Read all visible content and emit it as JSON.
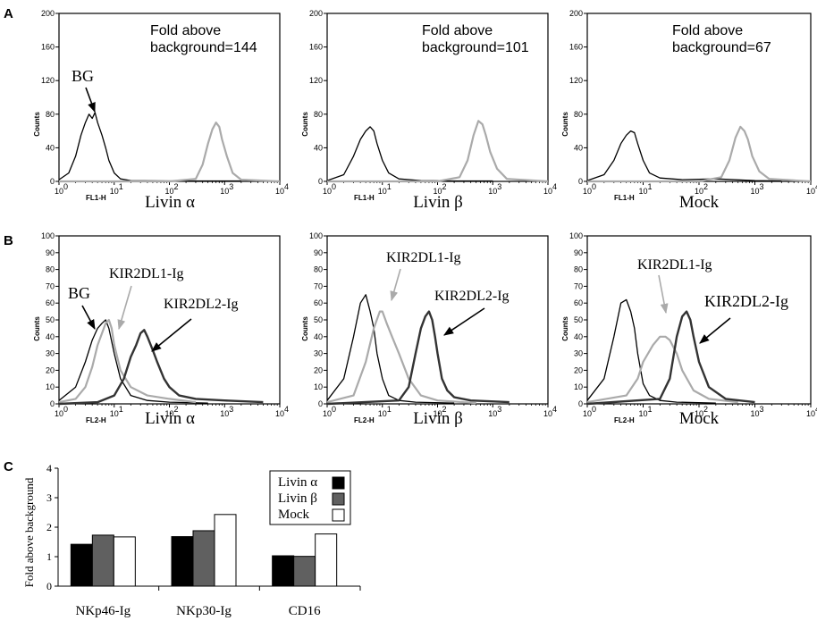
{
  "panels": [
    {
      "letter": "A"
    },
    {
      "letter": "B"
    },
    {
      "letter": "C"
    }
  ],
  "chart_data": [
    {
      "type": "line",
      "panel": "A",
      "title": "Livin α",
      "xlabel": "FL1-H",
      "ylabel": "Counts",
      "xscale": "log",
      "xlim": [
        1,
        10000
      ],
      "ylim": [
        0,
        200
      ],
      "xticks": [
        "10",
        "10",
        "10",
        "10",
        "10"
      ],
      "xticks_exp": [
        "0",
        "1",
        "2",
        "3",
        "4"
      ],
      "yticks": [
        "0",
        "40",
        "80",
        "120",
        "160",
        "200"
      ],
      "annotations": [
        "Fold above",
        "background=144",
        "BG"
      ],
      "series": [
        {
          "color": "#000000",
          "x": [
            1,
            1.5,
            2,
            2.5,
            3,
            3.5,
            4,
            4.5,
            5,
            6,
            7,
            8,
            10,
            13,
            20,
            100,
            500,
            2000
          ],
          "y": [
            2,
            10,
            30,
            55,
            70,
            80,
            75,
            82,
            70,
            55,
            40,
            25,
            10,
            3,
            1,
            0.5,
            0.5,
            0.5
          ]
        },
        {
          "color": "#aaaaaa",
          "x": [
            1,
            100,
            300,
            400,
            500,
            600,
            700,
            800,
            900,
            1100,
            1400,
            2000,
            10000
          ],
          "y": [
            0,
            0,
            3,
            20,
            45,
            62,
            70,
            65,
            50,
            30,
            10,
            2,
            0
          ]
        }
      ]
    },
    {
      "type": "line",
      "panel": "A",
      "title": "Livin β",
      "xlabel": "FL1-H",
      "ylabel": "Counts",
      "xscale": "log",
      "xlim": [
        1,
        10000
      ],
      "ylim": [
        0,
        200
      ],
      "xticks": [
        "10",
        "10",
        "10",
        "10",
        "10"
      ],
      "xticks_exp": [
        "0",
        "1",
        "2",
        "3",
        "4"
      ],
      "yticks": [
        "0",
        "40",
        "80",
        "120",
        "160",
        "200"
      ],
      "annotations": [
        "Fold above",
        "background=101"
      ],
      "series": [
        {
          "color": "#000000",
          "x": [
            1,
            2,
            3,
            4,
            5,
            6,
            7,
            8,
            10,
            13,
            20,
            50,
            200,
            1000
          ],
          "y": [
            1,
            8,
            30,
            50,
            60,
            65,
            60,
            45,
            25,
            10,
            3,
            1,
            0.5,
            0.5
          ]
        },
        {
          "color": "#aaaaaa",
          "x": [
            1,
            100,
            250,
            350,
            450,
            550,
            650,
            750,
            900,
            1200,
            1800,
            10000
          ],
          "y": [
            0,
            0,
            5,
            25,
            55,
            72,
            68,
            55,
            35,
            15,
            3,
            0
          ]
        }
      ]
    },
    {
      "type": "line",
      "panel": "A",
      "title": "Mock",
      "xlabel": "FL1-H",
      "ylabel": "Counts",
      "xscale": "log",
      "xlim": [
        1,
        10000
      ],
      "ylim": [
        0,
        200
      ],
      "xticks": [
        "10",
        "10",
        "10",
        "10",
        "10"
      ],
      "xticks_exp": [
        "0",
        "1",
        "2",
        "3",
        "4"
      ],
      "yticks": [
        "0",
        "40",
        "80",
        "120",
        "160",
        "200"
      ],
      "annotations": [
        "Fold above",
        "background=67"
      ],
      "series": [
        {
          "color": "#000000",
          "x": [
            1,
            2,
            3,
            4,
            5,
            6,
            7,
            8,
            10,
            13,
            20,
            50,
            200,
            1000,
            3000
          ],
          "y": [
            1,
            8,
            25,
            45,
            55,
            60,
            58,
            45,
            25,
            10,
            4,
            2,
            3,
            1,
            0.5
          ]
        },
        {
          "color": "#aaaaaa",
          "x": [
            1,
            100,
            250,
            350,
            450,
            550,
            650,
            750,
            900,
            1200,
            1800,
            10000
          ],
          "y": [
            0,
            0,
            5,
            25,
            52,
            65,
            60,
            50,
            30,
            12,
            3,
            0
          ]
        }
      ]
    },
    {
      "type": "line",
      "panel": "B",
      "title": "Livin α",
      "xlabel": "FL2-H",
      "ylabel": "Counts",
      "xscale": "log",
      "xlim": [
        1,
        10000
      ],
      "ylim": [
        0,
        100
      ],
      "xticks": [
        "10",
        "10",
        "10",
        "10",
        "10"
      ],
      "xticks_exp": [
        "0",
        "1",
        "2",
        "3",
        "4"
      ],
      "yticks": [
        "0",
        "10",
        "20",
        "30",
        "40",
        "50",
        "60",
        "70",
        "80",
        "90",
        "100"
      ],
      "annotations": [
        "BG",
        "KIR2DL1-Ig",
        "KIR2DL2-Ig"
      ],
      "series": [
        {
          "color": "#000000",
          "x": [
            1,
            2,
            3,
            4,
            5,
            6,
            7,
            8,
            10,
            13,
            20,
            40,
            100,
            500
          ],
          "y": [
            2,
            10,
            25,
            38,
            45,
            48,
            50,
            45,
            30,
            15,
            5,
            2,
            1,
            0.5
          ]
        },
        {
          "color": "#aaaaaa",
          "x": [
            1,
            2,
            3,
            4,
            5,
            6,
            7,
            8,
            9,
            10,
            13,
            20,
            40,
            100,
            300
          ],
          "y": [
            1,
            3,
            10,
            22,
            35,
            42,
            48,
            50,
            45,
            35,
            20,
            10,
            5,
            3,
            1
          ]
        },
        {
          "color": "#333333",
          "x": [
            1,
            5,
            10,
            15,
            20,
            25,
            30,
            35,
            40,
            50,
            60,
            80,
            100,
            150,
            300,
            1000,
            5000
          ],
          "y": [
            0,
            1,
            5,
            15,
            28,
            35,
            42,
            44,
            40,
            32,
            25,
            15,
            10,
            5,
            3,
            2,
            1
          ]
        }
      ]
    },
    {
      "type": "line",
      "panel": "B",
      "title": "Livin β",
      "xlabel": "FL2-H",
      "ylabel": "Counts",
      "xscale": "log",
      "xlim": [
        1,
        10000
      ],
      "ylim": [
        0,
        100
      ],
      "xticks": [
        "10",
        "10",
        "10",
        "10",
        "10"
      ],
      "xticks_exp": [
        "0",
        "1",
        "2",
        "3",
        "4"
      ],
      "yticks": [
        "0",
        "10",
        "20",
        "30",
        "40",
        "50",
        "60",
        "70",
        "80",
        "90",
        "100"
      ],
      "annotations": [
        "KIR2DL1-Ig",
        "KIR2DL2-Ig"
      ],
      "series": [
        {
          "color": "#000000",
          "x": [
            1,
            2,
            3,
            4,
            5,
            6,
            7,
            8,
            10,
            13,
            20,
            40,
            200
          ],
          "y": [
            2,
            15,
            40,
            60,
            65,
            55,
            45,
            30,
            15,
            5,
            2,
            1,
            0.5
          ]
        },
        {
          "color": "#aaaaaa",
          "x": [
            1,
            3,
            5,
            7,
            9,
            10,
            12,
            15,
            20,
            30,
            50,
            100,
            500
          ],
          "y": [
            1,
            5,
            25,
            45,
            55,
            55,
            48,
            40,
            30,
            15,
            5,
            2,
            0.5
          ]
        },
        {
          "color": "#333333",
          "x": [
            1,
            20,
            30,
            40,
            50,
            60,
            70,
            80,
            90,
            100,
            120,
            150,
            200,
            400,
            2000
          ],
          "y": [
            0,
            2,
            10,
            30,
            45,
            52,
            55,
            50,
            40,
            30,
            15,
            8,
            4,
            2,
            1
          ]
        }
      ]
    },
    {
      "type": "line",
      "panel": "B",
      "title": "Mock",
      "xlabel": "FL2-H",
      "ylabel": "Counts",
      "xscale": "log",
      "xlim": [
        1,
        10000
      ],
      "ylim": [
        0,
        100
      ],
      "xticks": [
        "10",
        "10",
        "10",
        "10",
        "10"
      ],
      "xticks_exp": [
        "0",
        "1",
        "2",
        "3",
        "4"
      ],
      "yticks": [
        "0",
        "10",
        "20",
        "30",
        "40",
        "50",
        "60",
        "70",
        "80",
        "90",
        "100"
      ],
      "annotations": [
        "KIR2DL1-Ig",
        "KIR2DL2-Ig"
      ],
      "series": [
        {
          "color": "#000000",
          "x": [
            1,
            2,
            3,
            4,
            5,
            6,
            7,
            8,
            10,
            13,
            20,
            40,
            200
          ],
          "y": [
            2,
            15,
            40,
            60,
            62,
            55,
            45,
            30,
            12,
            5,
            2,
            1,
            0.5
          ]
        },
        {
          "color": "#aaaaaa",
          "x": [
            1,
            5,
            8,
            10,
            15,
            20,
            25,
            30,
            40,
            50,
            80,
            150,
            500
          ],
          "y": [
            1,
            5,
            15,
            25,
            35,
            40,
            40,
            38,
            30,
            20,
            8,
            3,
            1
          ]
        },
        {
          "color": "#333333",
          "x": [
            1,
            20,
            30,
            40,
            50,
            60,
            70,
            80,
            100,
            150,
            300,
            1000
          ],
          "y": [
            0,
            3,
            15,
            40,
            52,
            55,
            50,
            40,
            25,
            10,
            3,
            1
          ]
        }
      ]
    },
    {
      "type": "bar",
      "panel": "C",
      "ylabel": "Fold above background",
      "ylim": [
        0,
        4
      ],
      "yticks": [
        "0",
        "1",
        "2",
        "3",
        "4"
      ],
      "categories": [
        "NKp46-Ig",
        "NKp30-Ig",
        "CD16"
      ],
      "series": [
        {
          "name": "Livin α",
          "color": "#000000",
          "values": [
            1.42,
            1.68,
            1.03
          ]
        },
        {
          "name": "Livin β",
          "color": "#606060",
          "values": [
            1.73,
            1.88,
            1.01
          ]
        },
        {
          "name": "Mock",
          "color": "#ffffff",
          "values": [
            1.67,
            2.43,
            1.77
          ]
        }
      ],
      "legend": "top-right"
    }
  ],
  "histogram_layout": [
    {
      "chart": 0,
      "ann": [
        {
          "text_idx": 0,
          "size": 16,
          "anchor": "start",
          "font": "sans"
        },
        {
          "text_idx": 1,
          "size": 16,
          "anchor": "start",
          "font": "sans"
        },
        {
          "text_idx": 2,
          "size": 18,
          "anchor": "start",
          "font": "serif"
        }
      ]
    },
    {
      "chart": 1
    },
    {
      "chart": 2
    }
  ]
}
